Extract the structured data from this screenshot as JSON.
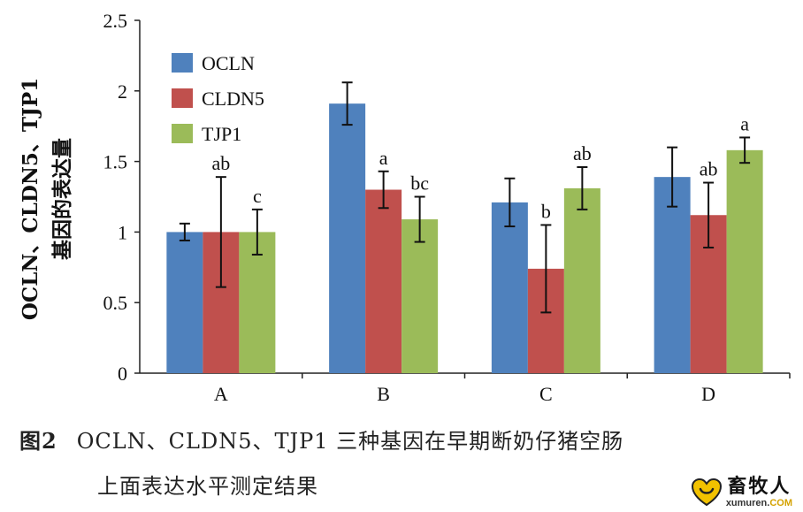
{
  "chart_data": {
    "type": "bar",
    "ylabel": "OCLN、CLDN5、TJP1基因的表达量",
    "ylabel_lines": [
      "OCLN、CLDN5、TJP1",
      "基因的表达量"
    ],
    "ylim": [
      0,
      2.5
    ],
    "yticks": [
      "0",
      "0.5",
      "1",
      "1.5",
      "2",
      "2.5"
    ],
    "categories": [
      "A",
      "B",
      "C",
      "D"
    ],
    "legend_position": "top-left",
    "grid": false,
    "series": [
      {
        "name": "OCLN",
        "color": "#4F81BD",
        "values": [
          1.0,
          1.91,
          1.21,
          1.39
        ],
        "errors": [
          0.06,
          0.15,
          0.17,
          0.21
        ],
        "labels": [
          "",
          "",
          "",
          ""
        ]
      },
      {
        "name": "CLDN5",
        "color": "#C0504D",
        "values": [
          1.0,
          1.3,
          0.74,
          1.12
        ],
        "errors": [
          0.39,
          0.13,
          0.31,
          0.23
        ],
        "labels": [
          "ab",
          "a",
          "b",
          "ab"
        ]
      },
      {
        "name": "TJP1",
        "color": "#9BBB59",
        "values": [
          1.0,
          1.09,
          1.31,
          1.58
        ],
        "errors": [
          0.16,
          0.16,
          0.15,
          0.09
        ],
        "labels": [
          "c",
          "bc",
          "ab",
          "a"
        ]
      }
    ]
  },
  "caption": {
    "label": "图2",
    "line1": "OCLN、CLDN5、TJP1 三种基因在早期断奶仔猪空肠",
    "line2": "上面表达水平测定结果"
  },
  "watermark": {
    "name": "畜牧人",
    "url_main": "xumuren.",
    "url_suffix": "COM",
    "heart_color": "#F2C200"
  }
}
